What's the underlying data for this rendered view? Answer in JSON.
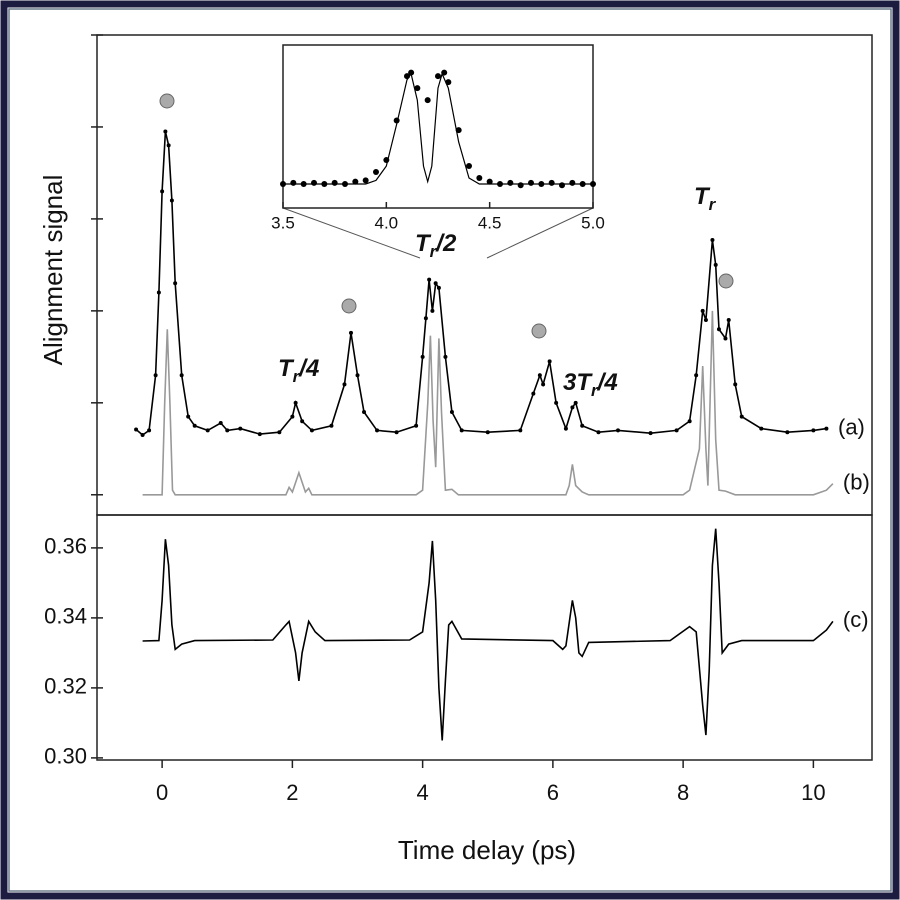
{
  "chart_data": [
    {
      "type": "line",
      "ylabel": "Alignment signal",
      "xlim": [
        -1,
        10.9
      ],
      "ylim": [
        -0.22,
        5.0
      ],
      "yticks": [
        0,
        1,
        2,
        3,
        4,
        5
      ],
      "series": [
        {
          "name": "(a)",
          "color": "#000000",
          "line": true,
          "markers": true,
          "x": [
            -0.4,
            -0.3,
            -0.2,
            -0.1,
            -0.05,
            0.0,
            0.05,
            0.1,
            0.15,
            0.2,
            0.3,
            0.4,
            0.5,
            0.7,
            0.9,
            1.0,
            1.2,
            1.5,
            1.8,
            2.0,
            2.05,
            2.15,
            2.3,
            2.6,
            2.8,
            2.9,
            3.0,
            3.1,
            3.3,
            3.6,
            3.9,
            4.0,
            4.05,
            4.1,
            4.15,
            4.2,
            4.25,
            4.35,
            4.45,
            4.6,
            5.0,
            5.5,
            5.7,
            5.8,
            5.85,
            5.95,
            6.05,
            6.2,
            6.3,
            6.35,
            6.45,
            6.7,
            7.0,
            7.5,
            7.9,
            8.1,
            8.2,
            8.3,
            8.35,
            8.45,
            8.5,
            8.55,
            8.65,
            8.7,
            8.8,
            8.9,
            9.2,
            9.6,
            10.0,
            10.2
          ],
          "values": [
            0.71,
            0.65,
            0.7,
            1.3,
            2.2,
            3.3,
            3.95,
            3.8,
            3.2,
            2.3,
            1.3,
            0.85,
            0.75,
            0.7,
            0.78,
            0.7,
            0.72,
            0.66,
            0.68,
            0.85,
            1.0,
            0.8,
            0.7,
            0.75,
            1.2,
            1.76,
            1.3,
            0.9,
            0.7,
            0.68,
            0.75,
            1.5,
            1.92,
            2.34,
            2.0,
            2.3,
            2.25,
            1.5,
            0.9,
            0.7,
            0.68,
            0.7,
            1.1,
            1.3,
            1.2,
            1.45,
            1.0,
            0.72,
            0.95,
            1.0,
            0.75,
            0.68,
            0.7,
            0.67,
            0.7,
            0.8,
            1.3,
            2.0,
            1.9,
            2.77,
            2.5,
            1.8,
            1.7,
            1.9,
            1.2,
            0.85,
            0.72,
            0.68,
            0.7,
            0.72
          ]
        },
        {
          "name": "(b)",
          "color": "#999999",
          "line": true,
          "markers": false,
          "x": [
            -0.3,
            0.0,
            0.04,
            0.08,
            0.12,
            0.16,
            0.2,
            1.9,
            1.95,
            2.0,
            2.1,
            2.2,
            2.25,
            2.3,
            3.9,
            4.0,
            4.08,
            4.12,
            4.16,
            4.2,
            4.25,
            4.29,
            4.35,
            4.45,
            4.55,
            6.2,
            6.25,
            6.3,
            6.35,
            6.45,
            6.55,
            8.0,
            8.1,
            8.25,
            8.3,
            8.35,
            8.38,
            8.45,
            8.5,
            8.55,
            8.65,
            8.8,
            10.0,
            10.2,
            10.3
          ],
          "values": [
            0,
            0,
            1.0,
            1.8,
            1.0,
            0.05,
            0,
            0,
            0.08,
            0.03,
            0.24,
            0.03,
            0.07,
            0,
            0,
            0.05,
            1.0,
            1.73,
            0.8,
            0.3,
            1.7,
            0.9,
            0.05,
            0.06,
            0,
            0,
            0.1,
            0.33,
            0.1,
            0.03,
            0,
            0,
            0.05,
            0.5,
            1.4,
            0.5,
            0.1,
            2.0,
            0.6,
            0.05,
            0.04,
            0,
            0,
            0.05,
            0.12
          ]
        }
      ],
      "annotations": [
        {
          "main": "T",
          "sub": "r",
          "rest": "/4"
        },
        {
          "main": "T",
          "sub": "r",
          "rest": "/2"
        },
        {
          "pre": "3",
          "main": "T",
          "sub": "r",
          "rest": "/4"
        },
        {
          "main": "T",
          "sub": "r"
        }
      ]
    },
    {
      "type": "line",
      "xlabel": "Time delay (ps)",
      "xlim": [
        -1,
        10.9
      ],
      "xticks": [
        0,
        2,
        4,
        6,
        8,
        10
      ],
      "ylim": [
        0.2994,
        0.3694
      ],
      "yticks": [
        {
          "value": 0.3,
          "label": "0.30"
        },
        0.32,
        0.34,
        0.36
      ],
      "series": [
        {
          "name": "(c)",
          "color": "#000000",
          "line": true,
          "markers": false,
          "x": [
            -0.3,
            -0.05,
            0.0,
            0.05,
            0.1,
            0.15,
            0.2,
            0.3,
            0.5,
            1.7,
            1.9,
            1.95,
            2.05,
            2.1,
            2.15,
            2.25,
            2.35,
            2.5,
            3.8,
            4.0,
            4.1,
            4.15,
            4.2,
            4.25,
            4.3,
            4.35,
            4.4,
            4.45,
            4.6,
            6.0,
            6.15,
            6.2,
            6.3,
            6.35,
            6.4,
            6.45,
            6.55,
            7.8,
            8.1,
            8.2,
            8.3,
            8.35,
            8.4,
            8.45,
            8.5,
            8.55,
            8.6,
            8.7,
            8.9,
            10.0,
            10.2,
            10.3
          ],
          "values": [
            0.3334,
            0.3335,
            0.345,
            0.3625,
            0.355,
            0.338,
            0.331,
            0.3325,
            0.3335,
            0.3337,
            0.338,
            0.339,
            0.33,
            0.322,
            0.33,
            0.339,
            0.336,
            0.3335,
            0.3337,
            0.336,
            0.35,
            0.362,
            0.345,
            0.32,
            0.305,
            0.322,
            0.338,
            0.339,
            0.334,
            0.3335,
            0.331,
            0.332,
            0.345,
            0.34,
            0.33,
            0.329,
            0.333,
            0.3335,
            0.3375,
            0.336,
            0.315,
            0.3065,
            0.325,
            0.355,
            0.3655,
            0.35,
            0.33,
            0.3325,
            0.3335,
            0.3335,
            0.3365,
            0.339
          ]
        }
      ]
    },
    {
      "type": "line",
      "xlim": [
        3.5,
        5.0
      ],
      "xticks": [
        3.5,
        {
          "value": 4.0,
          "label": "4.0"
        },
        4.5,
        {
          "value": 5.0,
          "label": "5.0"
        }
      ],
      "ylim": [
        -0.15,
        1.21
      ],
      "series": [
        {
          "color": "#000000",
          "line": false,
          "markers": true,
          "x": [
            3.5,
            3.55,
            3.6,
            3.65,
            3.7,
            3.75,
            3.8,
            3.85,
            3.9,
            3.95,
            4.0,
            4.05,
            4.1,
            4.12,
            4.15,
            4.2,
            4.25,
            4.28,
            4.3,
            4.35,
            4.4,
            4.45,
            4.5,
            4.55,
            4.6,
            4.65,
            4.7,
            4.75,
            4.8,
            4.85,
            4.9,
            4.95,
            5.0
          ],
          "values": [
            0.05,
            0.06,
            0.05,
            0.06,
            0.05,
            0.06,
            0.05,
            0.07,
            0.08,
            0.15,
            0.25,
            0.58,
            0.95,
            0.98,
            0.85,
            0.75,
            0.95,
            0.98,
            0.9,
            0.5,
            0.2,
            0.1,
            0.07,
            0.05,
            0.06,
            0.04,
            0.06,
            0.05,
            0.06,
            0.04,
            0.06,
            0.05,
            0.05
          ]
        },
        {
          "color": "#000000",
          "line": true,
          "markers": false,
          "x": [
            3.5,
            3.9,
            3.95,
            4.0,
            4.05,
            4.1,
            4.12,
            4.15,
            4.18,
            4.2,
            4.22,
            4.25,
            4.27,
            4.3,
            4.35,
            4.4,
            4.45,
            5.0
          ],
          "values": [
            0.05,
            0.05,
            0.08,
            0.2,
            0.55,
            0.92,
            0.97,
            0.75,
            0.2,
            0.07,
            0.2,
            0.85,
            0.97,
            0.85,
            0.4,
            0.1,
            0.05,
            0.05
          ]
        }
      ]
    }
  ]
}
